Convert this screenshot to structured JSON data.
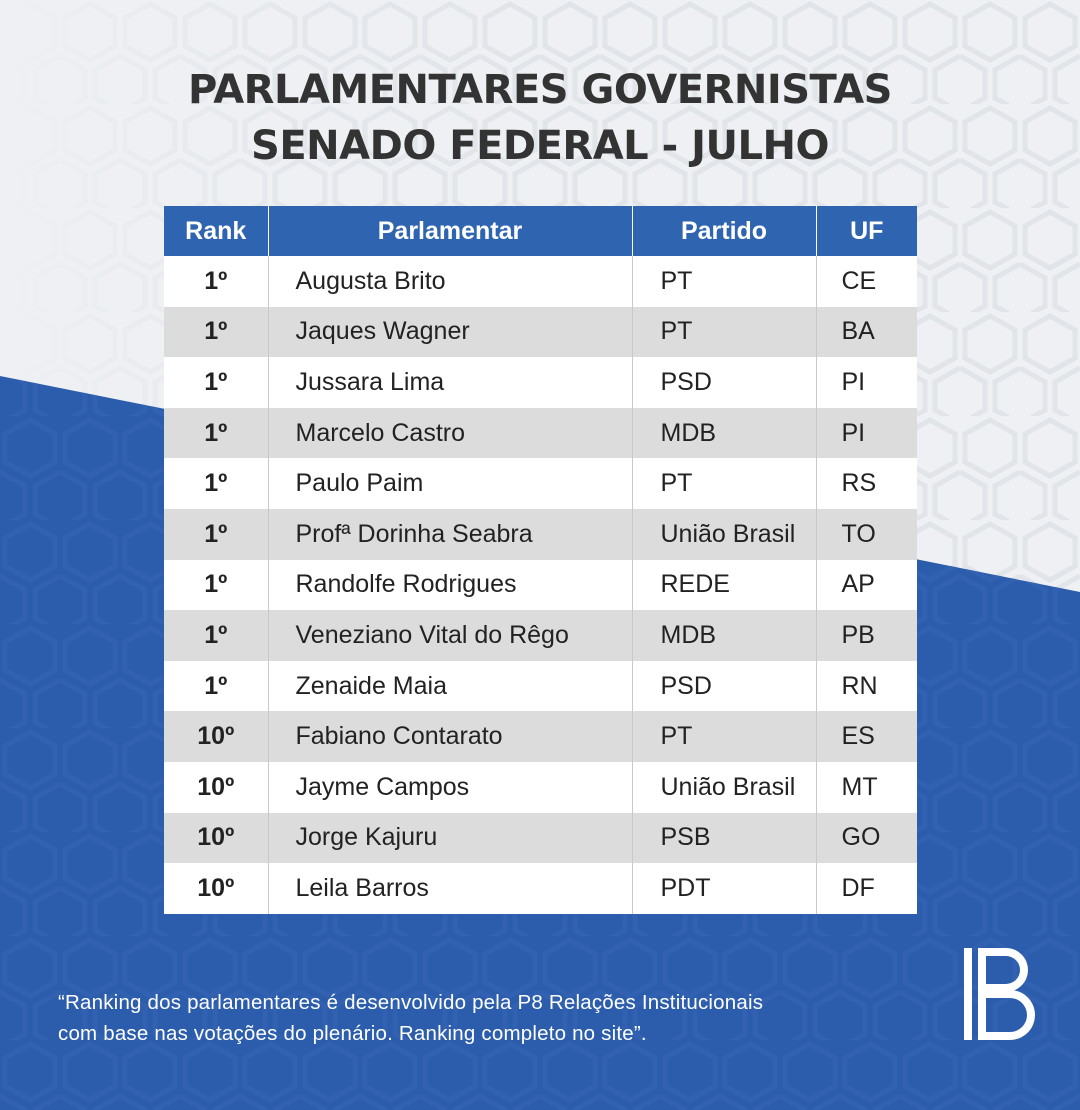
{
  "title": {
    "line1": "PARLAMENTARES GOVERNISTAS",
    "line2": "SENADO FEDERAL - JULHO"
  },
  "table": {
    "headers": [
      "Rank",
      "Parlamentar",
      "Partido",
      "UF"
    ],
    "rows": [
      {
        "rank": "1º",
        "name": "Augusta Brito",
        "party": "PT",
        "uf": "CE"
      },
      {
        "rank": "1º",
        "name": "Jaques Wagner",
        "party": "PT",
        "uf": "BA"
      },
      {
        "rank": "1º",
        "name": "Jussara Lima",
        "party": "PSD",
        "uf": "PI"
      },
      {
        "rank": "1º",
        "name": "Marcelo Castro",
        "party": "MDB",
        "uf": "PI"
      },
      {
        "rank": "1º",
        "name": "Paulo Paim",
        "party": "PT",
        "uf": "RS"
      },
      {
        "rank": "1º",
        "name": "Profª Dorinha Seabra",
        "party": "União Brasil",
        "uf": "TO"
      },
      {
        "rank": "1º",
        "name": "Randolfe Rodrigues",
        "party": "REDE",
        "uf": "AP"
      },
      {
        "rank": "1º",
        "name": "Veneziano Vital do Rêgo",
        "party": "MDB",
        "uf": "PB"
      },
      {
        "rank": "1º",
        "name": "Zenaide Maia",
        "party": "PSD",
        "uf": "RN"
      },
      {
        "rank": "10º",
        "name": "Fabiano Contarato",
        "party": "PT",
        "uf": "ES"
      },
      {
        "rank": "10º",
        "name": "Jayme Campos",
        "party": "União Brasil",
        "uf": "MT"
      },
      {
        "rank": "10º",
        "name": "Jorge Kajuru",
        "party": "PSB",
        "uf": "GO"
      },
      {
        "rank": "10º",
        "name": "Leila Barros",
        "party": "PDT",
        "uf": "DF"
      }
    ]
  },
  "footer": {
    "line1": "“Ranking dos parlamentares é desenvolvido pela P8 Relações Institucionais",
    "line2": "com base nas votações do plenário. Ranking completo no site”."
  },
  "logo": {
    "icon": "p8-logo-icon"
  },
  "colors": {
    "header_blue": "#2f65b0",
    "background_blue": "#2c5dad",
    "background_light": "#eef0f3",
    "row_alt": "#dcdcdc",
    "title": "#333333"
  }
}
